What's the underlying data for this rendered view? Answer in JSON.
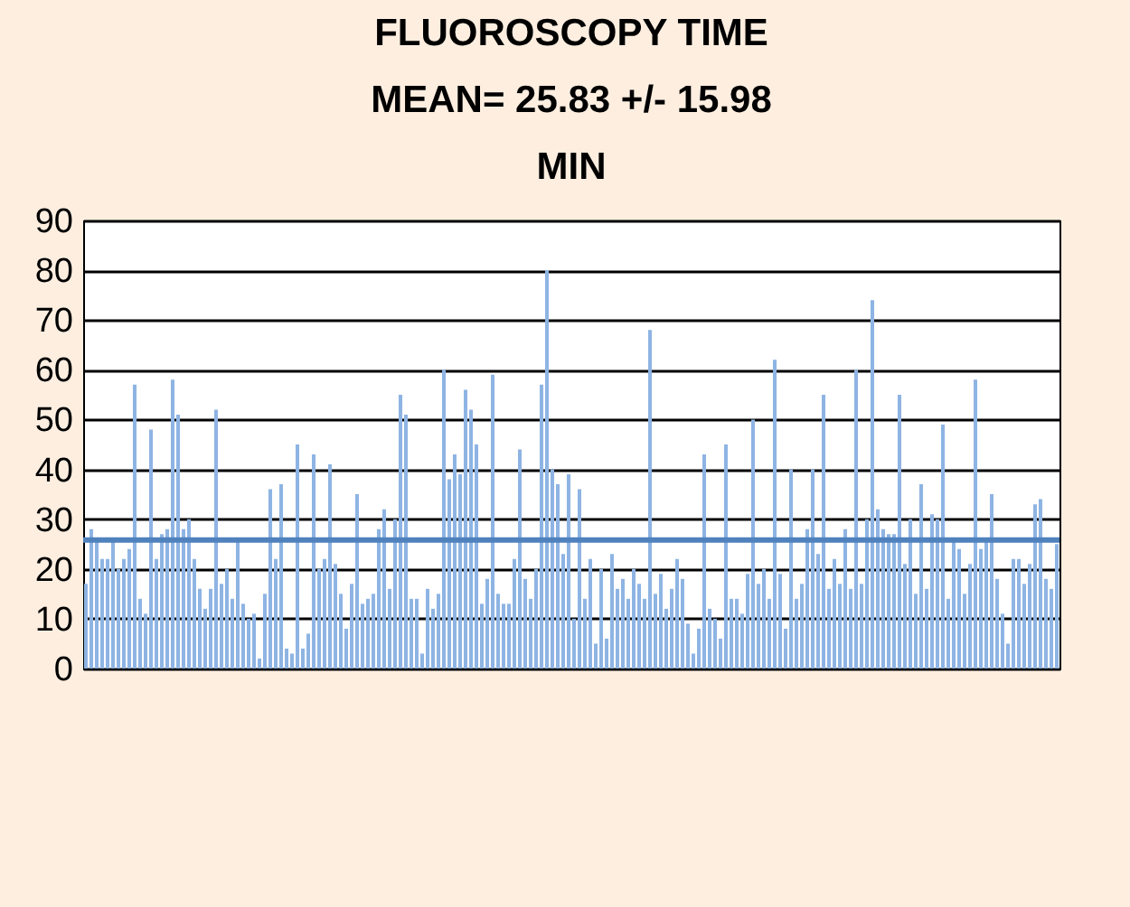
{
  "chart_data": {
    "type": "bar",
    "title": "FLUOROSCOPY TIME\nMEAN= 25.83 +/- 15.98\nMIN",
    "categories": [
      null,
      null,
      null,
      null,
      null,
      null,
      null,
      null,
      null,
      null,
      null,
      null,
      null,
      null,
      null,
      null,
      null,
      null,
      null,
      null,
      null,
      null,
      null,
      null,
      null,
      null,
      null,
      null,
      null,
      null,
      null,
      null,
      null,
      null,
      null,
      null,
      null,
      null,
      null,
      null,
      null,
      null,
      null,
      null,
      null,
      null,
      null,
      null,
      null,
      null,
      null,
      null,
      null,
      null,
      null,
      null,
      null,
      null,
      null,
      null,
      null,
      null,
      null,
      null,
      null,
      null,
      null,
      null,
      null,
      null,
      null,
      null,
      null,
      null,
      null,
      null,
      null,
      null,
      null,
      null,
      null,
      null,
      null,
      null,
      null,
      null,
      null,
      null,
      null,
      null,
      null,
      null,
      null,
      null,
      null,
      null,
      null,
      null,
      null,
      null,
      null,
      null,
      null,
      null,
      null,
      null,
      null,
      null,
      null,
      null,
      null,
      null,
      null,
      null,
      null,
      null,
      null,
      null,
      null,
      null,
      null,
      null,
      null,
      null,
      null,
      null,
      null,
      null,
      null,
      null,
      null,
      null,
      null,
      null,
      null,
      null,
      null,
      null,
      null,
      null,
      null,
      null,
      null,
      null,
      null,
      null,
      null,
      null,
      null,
      null,
      null,
      null,
      null,
      null,
      null,
      null,
      null,
      null,
      null,
      null,
      null,
      null,
      null,
      null,
      null,
      null,
      null,
      null,
      null,
      null,
      null,
      null,
      null,
      null,
      null,
      null,
      null,
      null,
      null,
      null
    ],
    "values": [
      17,
      28,
      26,
      22,
      22,
      26,
      20,
      22,
      24,
      57,
      14,
      11,
      48,
      22,
      27,
      28,
      58,
      51,
      28,
      30,
      22,
      16,
      12,
      16,
      52,
      17,
      20,
      14,
      26,
      13,
      10,
      11,
      2,
      15,
      36,
      22,
      37,
      4,
      3,
      45,
      4,
      7,
      43,
      20,
      22,
      41,
      21,
      15,
      8,
      17,
      35,
      13,
      14,
      15,
      28,
      32,
      16,
      30,
      55,
      51,
      14,
      14,
      3,
      16,
      12,
      15,
      60,
      38,
      43,
      39,
      56,
      52,
      45,
      13,
      18,
      59,
      15,
      13,
      13,
      22,
      44,
      18,
      14,
      20,
      57,
      80,
      40,
      37,
      23,
      39,
      10,
      36,
      14,
      22,
      5,
      20,
      6,
      23,
      16,
      18,
      14,
      20,
      17,
      14,
      68,
      15,
      19,
      12,
      16,
      22,
      18,
      9,
      3,
      8,
      43,
      12,
      10,
      6,
      45,
      14,
      14,
      11,
      19,
      50,
      17,
      20,
      14,
      62,
      19,
      8,
      40,
      14,
      17,
      28,
      40,
      23,
      55,
      16,
      22,
      17,
      28,
      16,
      60,
      17,
      30,
      74,
      32,
      28,
      27,
      27,
      55,
      21,
      30,
      15,
      37,
      16,
      31,
      30,
      49,
      14,
      26,
      24,
      15,
      21,
      58,
      24,
      26,
      35,
      18,
      11,
      5,
      22,
      22,
      17,
      21,
      33,
      34,
      18,
      16,
      25
    ],
    "color": "#8eb4e3",
    "ylim": [
      0,
      90
    ],
    "yticks": [
      0,
      10,
      20,
      30,
      40,
      50,
      60,
      70,
      80,
      90
    ],
    "grid": "y",
    "tick_labels": "y",
    "ref_lines": [
      {
        "axis": "y",
        "value": 25.83,
        "color": "#4f81bd"
      }
    ]
  }
}
